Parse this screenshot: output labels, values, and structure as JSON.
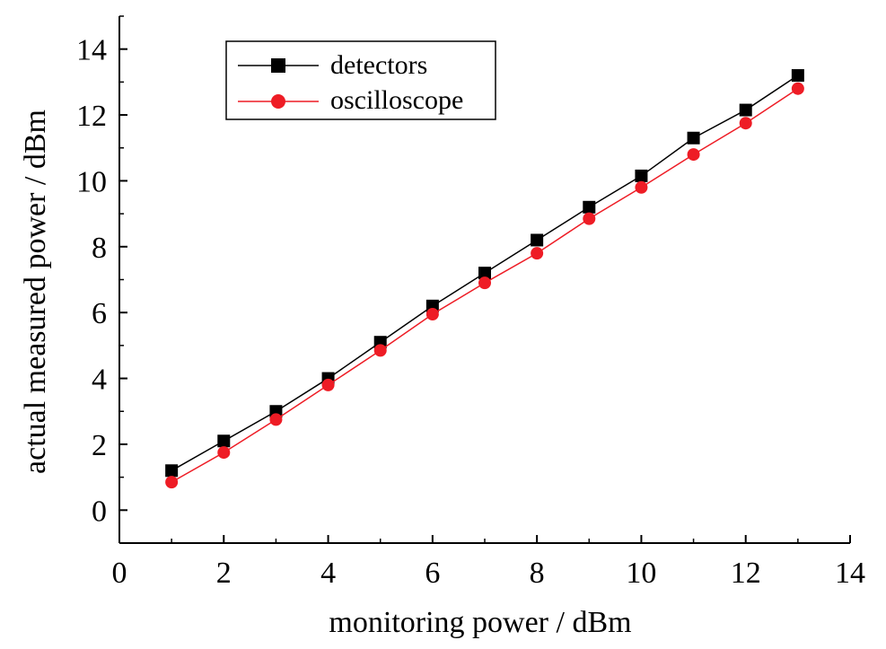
{
  "chart_data": {
    "type": "line",
    "xlabel": "monitoring power / dBm",
    "ylabel": "actual measured power / dBm",
    "xlim": [
      0,
      14
    ],
    "ylim": [
      -1,
      15
    ],
    "x_ticks": [
      0,
      2,
      4,
      6,
      8,
      10,
      12,
      14
    ],
    "y_ticks": [
      0,
      2,
      4,
      6,
      8,
      10,
      12,
      14
    ],
    "grid": false,
    "legend_position": "top-left",
    "x": [
      1,
      2,
      3,
      4,
      5,
      6,
      7,
      8,
      9,
      10,
      11,
      12,
      13
    ],
    "series": [
      {
        "name": "detectors",
        "color": "#000000",
        "marker": "square",
        "values": [
          1.2,
          2.1,
          3.0,
          4.0,
          5.1,
          6.2,
          7.2,
          8.2,
          9.2,
          10.15,
          11.3,
          12.15,
          13.2
        ]
      },
      {
        "name": "oscilloscope",
        "color": "#ee1c25",
        "marker": "circle",
        "values": [
          0.85,
          1.75,
          2.75,
          3.8,
          4.85,
          5.95,
          6.9,
          7.8,
          8.85,
          9.8,
          10.8,
          11.75,
          12.8
        ]
      }
    ]
  }
}
